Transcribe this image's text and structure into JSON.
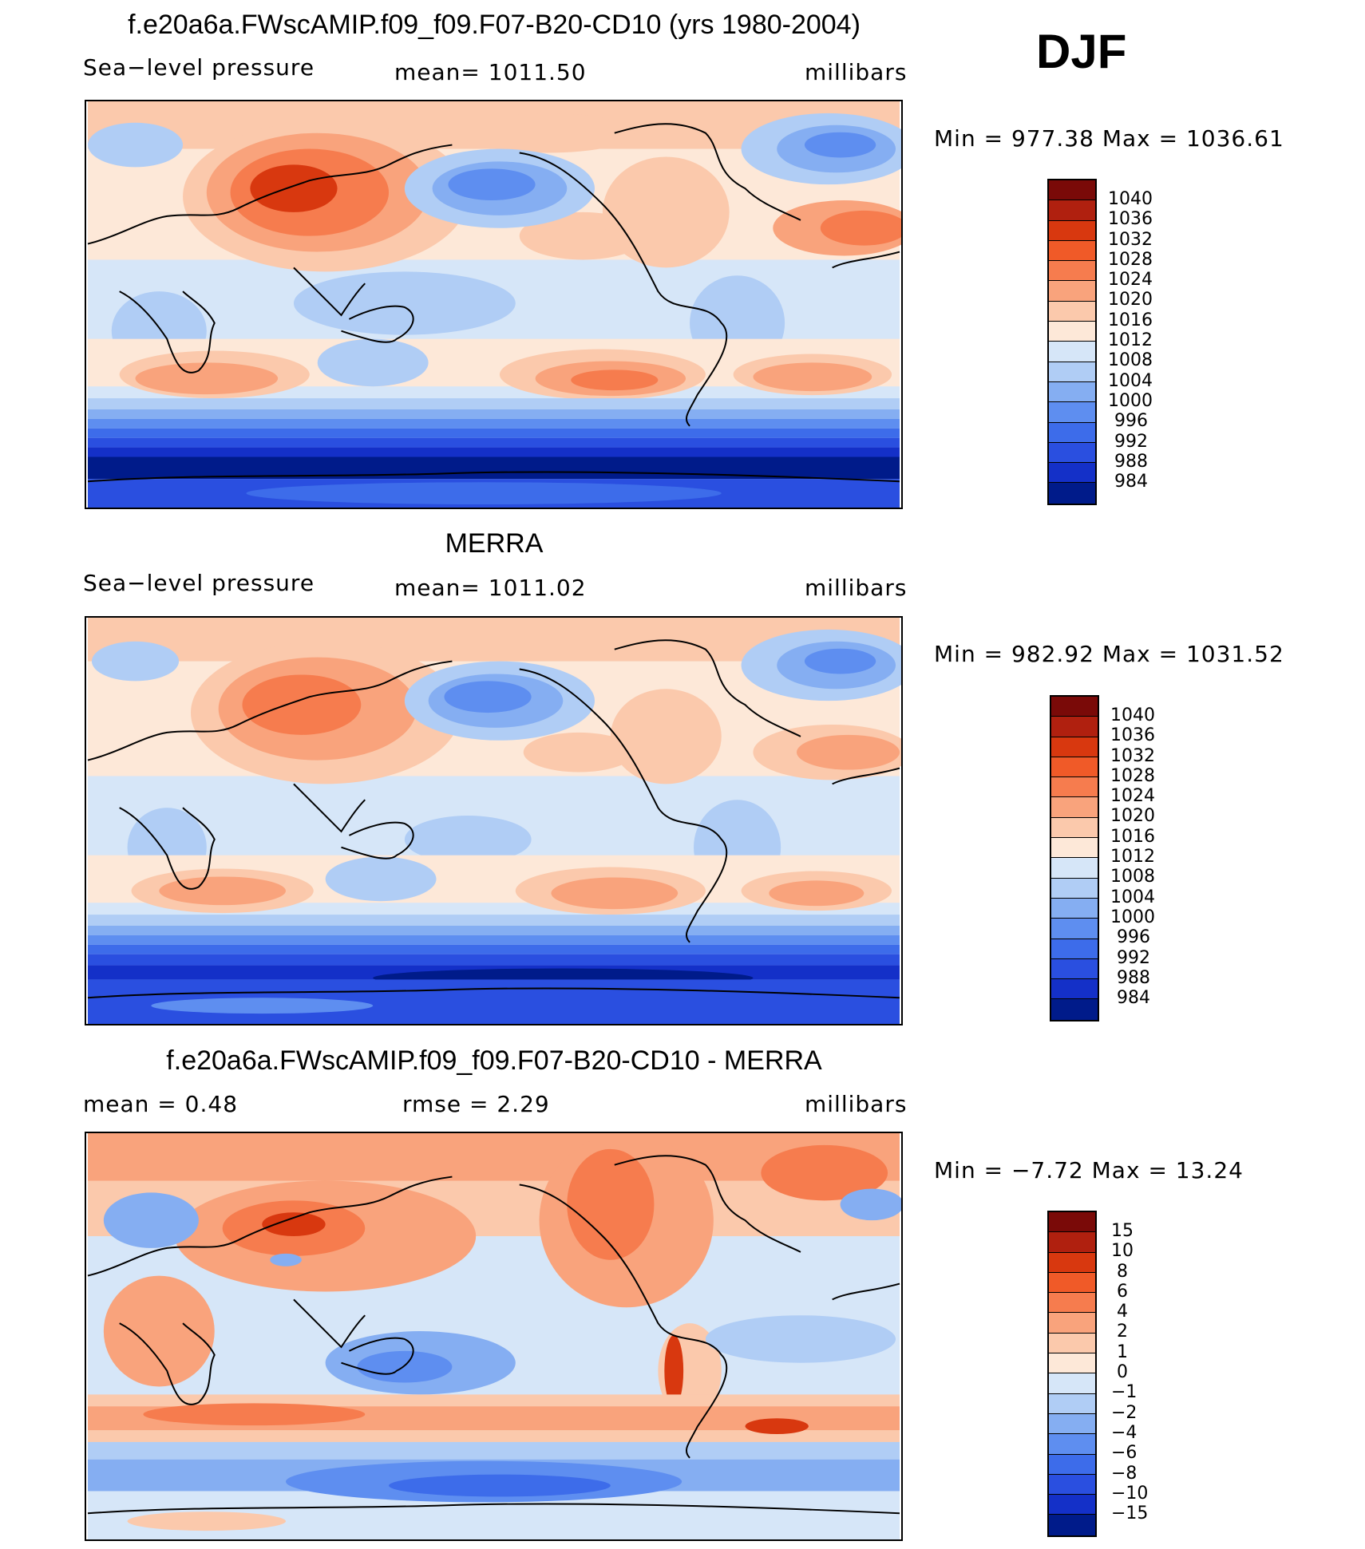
{
  "season": "DJF",
  "panels": [
    {
      "title": "f.e20a6a.FWscAMIP.f09_f09.F07-B20-CD10 (yrs 1980-2004)",
      "left": "Sea−level pressure",
      "middle": "mean=  1011.50",
      "right": "millibars",
      "minmax": "Min  =  977.38  Max  =  1036.61",
      "levels": [
        "1040",
        "1036",
        "1032",
        "1028",
        "1024",
        "1020",
        "1016",
        "1012",
        "1008",
        "1004",
        "1000",
        "996",
        "992",
        "988",
        "984"
      ],
      "colors": [
        "#7a0a08",
        "#b0200f",
        "#d8380f",
        "#f05a28",
        "#f67c4e",
        "#f9a37c",
        "#fbc9ac",
        "#fde8d8",
        "#d6e6f8",
        "#b0cdf5",
        "#85aef2",
        "#5e8ef0",
        "#3d6cea",
        "#2a4fe0",
        "#1430c8",
        "#001b8a"
      ]
    },
    {
      "title": "MERRA",
      "left": "Sea−level pressure",
      "middle": "mean=  1011.02",
      "right": "millibars",
      "minmax": "Min  =  982.92  Max  =  1031.52",
      "levels": [
        "1040",
        "1036",
        "1032",
        "1028",
        "1024",
        "1020",
        "1016",
        "1012",
        "1008",
        "1004",
        "1000",
        "996",
        "992",
        "988",
        "984"
      ],
      "colors": [
        "#7a0a08",
        "#b0200f",
        "#d8380f",
        "#f05a28",
        "#f67c4e",
        "#f9a37c",
        "#fbc9ac",
        "#fde8d8",
        "#d6e6f8",
        "#b0cdf5",
        "#85aef2",
        "#5e8ef0",
        "#3d6cea",
        "#2a4fe0",
        "#1430c8",
        "#001b8a"
      ]
    },
    {
      "title": "f.e20a6a.FWscAMIP.f09_f09.F07-B20-CD10 - MERRA",
      "left": "mean  =     0.48",
      "middle": "rmse  =     2.29",
      "right": "millibars",
      "minmax": "Min  =   −7.72  Max  =    13.24",
      "levels": [
        "15",
        "10",
        "8",
        "6",
        "4",
        "2",
        "1",
        "0",
        "−1",
        "−2",
        "−4",
        "−6",
        "−8",
        "−10",
        "−15"
      ],
      "colors": [
        "#7a0a08",
        "#b0200f",
        "#d8380f",
        "#f05a28",
        "#f67c4e",
        "#f9a37c",
        "#fbc9ac",
        "#fde8d8",
        "#d6e6f8",
        "#b0cdf5",
        "#85aef2",
        "#5e8ef0",
        "#3d6cea",
        "#2a4fe0",
        "#1430c8",
        "#001b8a"
      ]
    }
  ]
}
